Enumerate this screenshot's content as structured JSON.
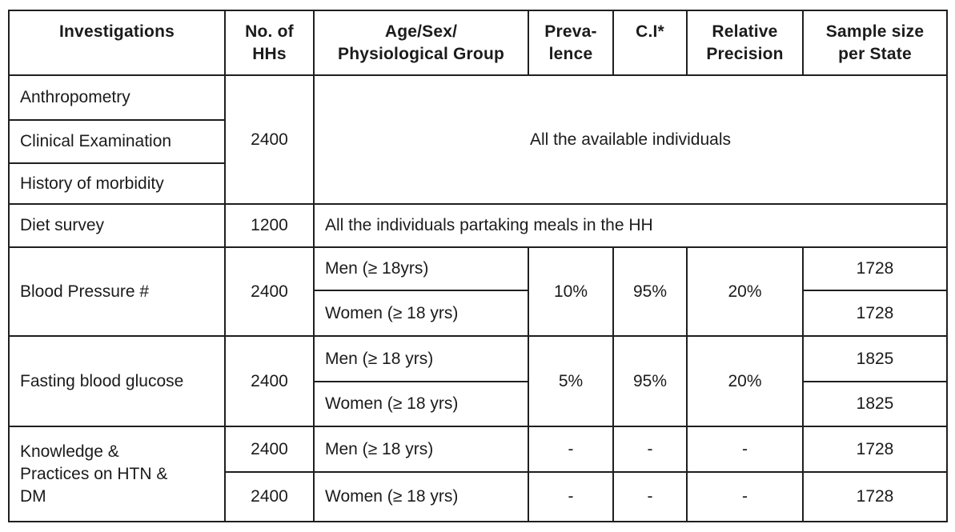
{
  "table": {
    "columns": [
      "Investigations",
      "No. of\nHHs",
      "Age/Sex/\nPhysiological Group",
      "Preva-\nlence",
      "C.I*",
      "Relative\nPrecision",
      "Sample size\nper State"
    ],
    "rows": {
      "anthropometry": {
        "label": "Anthropometry"
      },
      "clinical_examination": {
        "label": "Clinical Examination"
      },
      "history_of_morbidity": {
        "label": "History of morbidity"
      },
      "group1": {
        "no_of_hhs": "2400",
        "coverage": "All the available individuals"
      },
      "diet_survey": {
        "label": "Diet survey",
        "no_of_hhs": "1200",
        "coverage": "All the individuals partaking meals in the HH"
      },
      "blood_pressure": {
        "label": "Blood Pressure #",
        "no_of_hhs": "2400",
        "men": "Men (≥ 18yrs)",
        "women": "Women (≥ 18 yrs)",
        "prevalence": "10%",
        "ci": "95%",
        "relative_precision": "20%",
        "sample_men": "1728",
        "sample_women": "1728"
      },
      "fasting_blood_glucose": {
        "label": "Fasting blood glucose",
        "no_of_hhs": "2400",
        "men": "Men (≥ 18 yrs)",
        "women": "Women (≥ 18 yrs)",
        "prevalence": "5%",
        "ci": "95%",
        "relative_precision": "20%",
        "sample_men": "1825",
        "sample_women": "1825"
      },
      "knowledge_practices": {
        "label": "Knowledge &\nPractices on HTN &\nDM",
        "no_of_hhs_men": "2400",
        "no_of_hhs_women": "2400",
        "men": "Men (≥ 18 yrs)",
        "women": "Women (≥ 18 yrs)",
        "prevalence_men": "-",
        "ci_men": "-",
        "relative_precision_men": "-",
        "sample_men": "1728",
        "prevalence_women": "-",
        "ci_women": "-",
        "relative_precision_women": "-",
        "sample_women": "1728"
      }
    },
    "colors": {
      "text": "#1b1b1b",
      "border": "#1f1f1f",
      "background": "#ffffff"
    }
  }
}
